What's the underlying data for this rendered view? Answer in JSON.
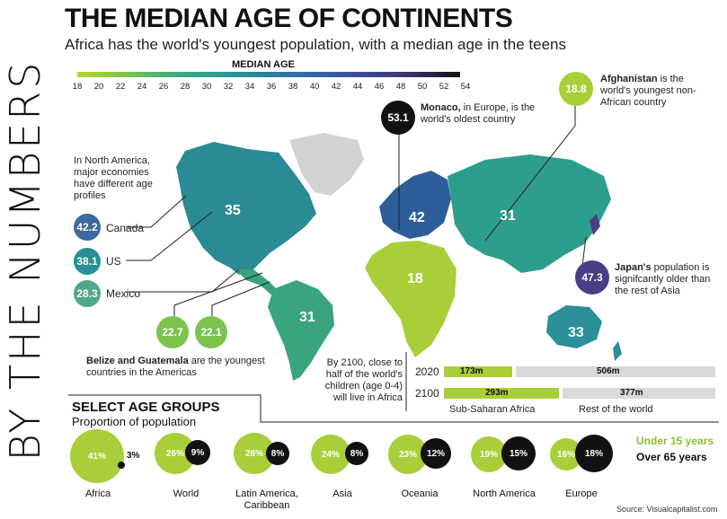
{
  "side_title": "BY THE NUMBERS",
  "title": "THE MEDIAN AGE OF CONTINENTS",
  "subtitle": "Africa has the world's youngest population, with a median age in the teens",
  "scale": {
    "label": "MEDIAN AGE",
    "ticks": [
      "18",
      "20",
      "22",
      "24",
      "26",
      "28",
      "30",
      "32",
      "34",
      "36",
      "38",
      "40",
      "42",
      "44",
      "46",
      "48",
      "50",
      "52",
      "54"
    ]
  },
  "map_values": {
    "north_america": "35",
    "south_america": "31",
    "europe": "42",
    "africa": "18",
    "asia": "31",
    "oceania": "33"
  },
  "north_america_note": "In North America, major economies have different age profiles",
  "countries": {
    "canada": {
      "value": "42.2",
      "label": "Canada"
    },
    "us": {
      "value": "38.1",
      "label": "US"
    },
    "mexico": {
      "value": "28.3",
      "label": "Mexico"
    },
    "belize": {
      "value": "22.7"
    },
    "guatemala": {
      "value": "22.1"
    }
  },
  "belize_note_bold": "Belize and Guatemala",
  "belize_note_rest": " are the youngest countries in the Americas",
  "monaco": {
    "value": "53.1",
    "bold": "Monaco,",
    "rest": " in Europe, is the world's oldest country"
  },
  "afghanistan": {
    "value": "18.8",
    "bold": "Afghanistan",
    "rest": " is the world's youngest non-African country"
  },
  "japan": {
    "value": "47.3",
    "bold": "Japan's",
    "rest": " population is signifcantly older than the rest of Asia"
  },
  "children_note": "By 2100, close to half of the world's children (age 0-4) will live in Africa",
  "children_bars": {
    "y2020": {
      "year": "2020",
      "ssa": "173m",
      "rest": "506m"
    },
    "y2100": {
      "year": "2100",
      "ssa": "293m",
      "rest": "377m"
    },
    "legend_ssa": "Sub-Saharan Africa",
    "legend_rest": "Rest of the world"
  },
  "age_groups": {
    "title": "SELECT AGE GROUPS",
    "subtitle": "Proportion of population",
    "legend_under": "Under 15 years",
    "legend_over": "Over 65 years",
    "items": [
      {
        "name": "Africa",
        "under": "41%",
        "over": "3%"
      },
      {
        "name": "World",
        "under": "26%",
        "over": "9%"
      },
      {
        "name": "Latin America, Caribbean",
        "under": "26%",
        "over": "8%"
      },
      {
        "name": "Asia",
        "under": "24%",
        "over": "8%"
      },
      {
        "name": "Oceania",
        "under": "23%",
        "over": "12%"
      },
      {
        "name": "North America",
        "under": "19%",
        "over": "15%"
      },
      {
        "name": "Europe",
        "under": "16%",
        "over": "18%"
      }
    ]
  },
  "source": "Source: Visualcapitalist.com",
  "colors": {
    "young": "#a8cf38",
    "green": "#3aa57a",
    "teal": "#2a8f98",
    "blue": "#2e5e99",
    "purple": "#4b3d86",
    "black": "#111111",
    "grey": "#d9d9d9"
  }
}
